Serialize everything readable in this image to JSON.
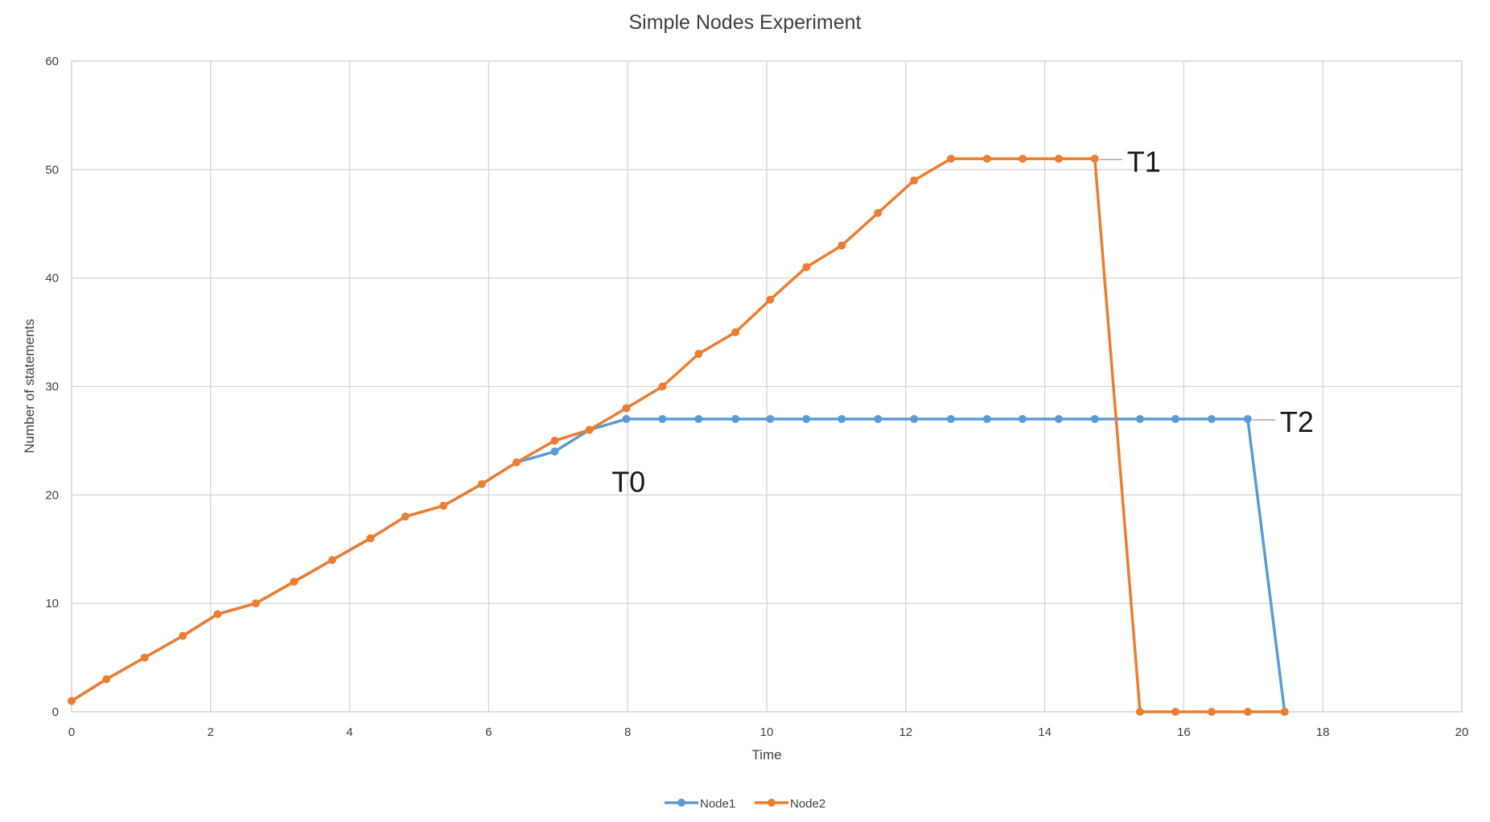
{
  "chart_data": {
    "type": "line",
    "title": "Simple Nodes Experiment",
    "xlabel": "Time",
    "ylabel": "Number of statements",
    "xlim": [
      0,
      20
    ],
    "ylim": [
      0,
      60
    ],
    "xticks": [
      0,
      2,
      4,
      6,
      8,
      10,
      12,
      14,
      16,
      18,
      20
    ],
    "yticks": [
      0,
      10,
      20,
      30,
      40,
      50,
      60
    ],
    "grid": true,
    "legend": "bottom-center",
    "series": [
      {
        "name": "Node1",
        "color": "#5b9bd5",
        "points": [
          [
            0,
            1
          ],
          [
            0.5,
            3
          ],
          [
            1.05,
            5
          ],
          [
            1.6,
            7
          ],
          [
            2.1,
            9
          ],
          [
            2.65,
            10
          ],
          [
            3.2,
            12
          ],
          [
            3.75,
            14
          ],
          [
            4.3,
            16
          ],
          [
            4.8,
            18
          ],
          [
            5.35,
            19
          ],
          [
            5.9,
            21
          ],
          [
            6.4,
            23
          ],
          [
            6.95,
            24
          ],
          [
            7.45,
            26
          ],
          [
            7.98,
            27
          ],
          [
            8.5,
            27
          ],
          [
            9.02,
            27
          ],
          [
            9.55,
            27
          ],
          [
            10.05,
            27
          ],
          [
            10.57,
            27
          ],
          [
            11.08,
            27
          ],
          [
            11.6,
            27
          ],
          [
            12.12,
            27
          ],
          [
            12.65,
            27
          ],
          [
            13.17,
            27
          ],
          [
            13.68,
            27
          ],
          [
            14.2,
            27
          ],
          [
            14.72,
            27
          ],
          [
            15.37,
            27
          ],
          [
            15.88,
            27
          ],
          [
            16.4,
            27
          ],
          [
            16.92,
            27
          ],
          [
            17.45,
            0
          ]
        ],
        "markers": [
          [
            7.98,
            27
          ],
          [
            8.5,
            27
          ],
          [
            9.02,
            27
          ],
          [
            9.55,
            27
          ],
          [
            10.05,
            27
          ],
          [
            10.57,
            27
          ],
          [
            11.08,
            27
          ],
          [
            11.6,
            27
          ],
          [
            12.12,
            27
          ],
          [
            12.65,
            27
          ],
          [
            13.17,
            27
          ],
          [
            13.68,
            27
          ],
          [
            14.2,
            27
          ],
          [
            14.72,
            27
          ],
          [
            15.37,
            27
          ],
          [
            15.88,
            27
          ],
          [
            16.4,
            27
          ],
          [
            16.92,
            27
          ],
          [
            17.45,
            0
          ],
          [
            6.95,
            24
          ]
        ]
      },
      {
        "name": "Node2",
        "color": "#ed7d31",
        "points": [
          [
            0,
            1
          ],
          [
            0.5,
            3
          ],
          [
            1.05,
            5
          ],
          [
            1.6,
            7
          ],
          [
            2.1,
            9
          ],
          [
            2.65,
            10
          ],
          [
            3.2,
            12
          ],
          [
            3.75,
            14
          ],
          [
            4.3,
            16
          ],
          [
            4.8,
            18
          ],
          [
            5.35,
            19
          ],
          [
            5.9,
            21
          ],
          [
            6.4,
            23
          ],
          [
            6.95,
            25
          ],
          [
            7.45,
            26
          ],
          [
            7.98,
            28
          ],
          [
            8.5,
            30
          ],
          [
            9.02,
            33
          ],
          [
            9.55,
            35
          ],
          [
            10.05,
            38
          ],
          [
            10.57,
            41
          ],
          [
            11.08,
            43
          ],
          [
            11.6,
            46
          ],
          [
            12.12,
            49
          ],
          [
            12.65,
            51
          ],
          [
            13.17,
            51
          ],
          [
            13.68,
            51
          ],
          [
            14.2,
            51
          ],
          [
            14.72,
            51
          ],
          [
            15.37,
            0
          ],
          [
            15.88,
            0
          ],
          [
            16.4,
            0
          ],
          [
            16.92,
            0
          ],
          [
            17.45,
            0
          ]
        ]
      }
    ],
    "annotations": [
      {
        "text": "T0",
        "x": 8.0,
        "y": 24
      },
      {
        "text": "T1",
        "x": 14.72,
        "y": 51
      },
      {
        "text": "T2",
        "x": 16.92,
        "y": 27
      }
    ]
  }
}
